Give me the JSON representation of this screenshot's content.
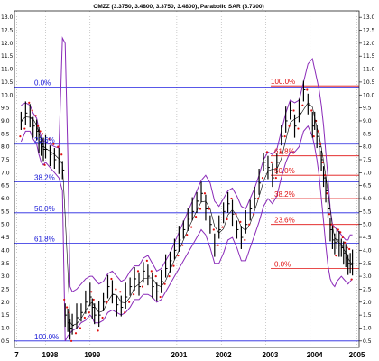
{
  "chart_data": {
    "type": "line",
    "title": "OMZZ (3.3750, 3.4800, 3.3750, 3.4800), Parabolic SAR (3.7300)",
    "xlabel": "",
    "ylabel": "",
    "ylim": [
      0.25,
      13.25
    ],
    "x_ticks": [
      "7",
      "1998",
      "1999",
      "2001",
      "2002",
      "2003",
      "2004",
      "2005"
    ],
    "y_ticks": [
      "0.5",
      "1.0",
      "1.5",
      "2.0",
      "2.5",
      "3.0",
      "3.5",
      "4.0",
      "4.5",
      "5.0",
      "5.5",
      "6.0",
      "6.5",
      "7.0",
      "7.5",
      "8.0",
      "8.5",
      "9.0",
      "9.5",
      "10.0",
      "10.5",
      "11.0",
      "11.5",
      "12.0",
      "12.5",
      "13.0"
    ],
    "fib_left": {
      "labels": [
        "0.0%",
        "23.6%",
        "38.2%",
        "50.0%",
        "61.8%",
        "100.0%"
      ],
      "values": [
        10.3,
        8.1,
        6.65,
        5.45,
        4.28,
        0.5
      ]
    },
    "fib_right": {
      "labels": [
        "100.0%",
        "61.8%",
        "50.0%",
        "38.2%",
        "23.6%",
        "0.0%"
      ],
      "values": [
        10.35,
        7.65,
        6.9,
        6.0,
        5.0,
        3.3
      ]
    },
    "series": [
      {
        "name": "",
        "x": [
          1997.45,
          1997.55,
          1997.65,
          1997.72,
          1997.8,
          1997.85,
          1997.9,
          1997.95,
          1998.0,
          1998.1,
          1998.2,
          1998.3,
          1998.38,
          1998.44,
          1998.5,
          1998.55,
          1998.6,
          1998.7,
          1998.8,
          1998.9,
          1999.0,
          1999.05,
          1999.1,
          1999.2,
          1999.3,
          1999.4,
          1999.5,
          1999.6,
          1999.7,
          1999.8,
          1999.9,
          2000.0,
          2000.1,
          2000.2,
          2000.3,
          2000.4,
          2000.5,
          2000.6,
          2000.7,
          2000.8,
          2000.9,
          2001.0,
          2001.1,
          2001.2,
          2001.3,
          2001.4,
          2001.5,
          2001.6,
          2001.7,
          2001.8,
          2001.9,
          2002.0,
          2002.1,
          2002.2,
          2002.3,
          2002.4,
          2002.5,
          2002.6,
          2002.7,
          2002.8,
          2002.9,
          2003.0,
          2003.1,
          2003.2,
          2003.3,
          2003.4,
          2003.5,
          2003.6,
          2003.7,
          2003.8,
          2003.9,
          2004.0,
          2004.05,
          2004.1,
          2004.15,
          2004.2,
          2004.25,
          2004.3,
          2004.35,
          2004.4,
          2004.45,
          2004.5,
          2004.55,
          2004.6,
          2004.65,
          2004.7,
          2004.75,
          2004.8,
          2004.85,
          2004.9
        ],
        "values": [
          9.0,
          9.3,
          9.1,
          8.8,
          8.6,
          8.2,
          8.0,
          7.9,
          7.9,
          7.7,
          7.5,
          7.4,
          7.1,
          1.5,
          1.2,
          1.0,
          1.1,
          1.4,
          1.6,
          2.0,
          2.2,
          1.8,
          1.5,
          1.5,
          2.0,
          2.6,
          2.3,
          1.9,
          1.8,
          2.2,
          2.6,
          2.9,
          2.6,
          3.2,
          3.0,
          2.6,
          2.4,
          2.8,
          3.3,
          3.6,
          4.0,
          4.4,
          4.8,
          5.2,
          5.5,
          5.9,
          6.2,
          5.6,
          5.0,
          4.2,
          4.8,
          5.5,
          5.8,
          5.4,
          4.8,
          4.5,
          5.0,
          5.6,
          6.0,
          6.6,
          7.4,
          7.2,
          6.8,
          7.4,
          8.4,
          9.0,
          9.4,
          8.8,
          9.3,
          10.2,
          9.6,
          8.8,
          9.0,
          8.4,
          8.0,
          7.5,
          6.8,
          6.3,
          5.6,
          4.8,
          4.4,
          4.3,
          4.4,
          4.2,
          4.1,
          3.9,
          3.7,
          3.5,
          3.45,
          3.48
        ]
      }
    ],
    "upper_band": [
      9.6,
      9.7,
      9.6,
      9.3,
      9.1,
      8.7,
      8.4,
      8.2,
      8.2,
      8.1,
      8.0,
      7.95,
      12.2,
      12.0,
      7.8,
      2.6,
      2.4,
      2.5,
      2.7,
      2.9,
      3.0,
      3.0,
      2.9,
      2.7,
      2.8,
      3.1,
      3.2,
      3.0,
      2.8,
      2.9,
      3.2,
      3.4,
      3.4,
      3.7,
      3.8,
      3.5,
      3.2,
      3.3,
      3.6,
      3.9,
      4.3,
      4.7,
      5.1,
      5.5,
      5.9,
      6.3,
      6.7,
      6.9,
      6.6,
      5.9,
      5.7,
      6.0,
      6.3,
      6.4,
      6.1,
      5.7,
      5.6,
      6.0,
      6.4,
      6.9,
      7.5,
      7.8,
      7.7,
      7.9,
      8.6,
      9.3,
      9.8,
      9.7,
      9.8,
      10.5,
      11.2,
      11.4,
      11.0,
      10.6,
      10.2,
      9.6,
      8.8,
      7.8,
      6.8,
      5.6,
      5.0,
      4.9,
      4.8,
      4.7,
      4.6,
      4.5,
      4.4,
      4.4,
      4.6,
      4.6
    ],
    "lower_band": [
      8.2,
      8.6,
      8.6,
      8.3,
      8.1,
      7.7,
      7.4,
      7.3,
      7.4,
      7.2,
      7.0,
      6.8,
      6.3,
      0.5,
      0.7,
      0.8,
      0.9,
      1.0,
      1.2,
      1.3,
      1.5,
      1.4,
      1.2,
      1.2,
      1.3,
      1.6,
      1.7,
      1.6,
      1.5,
      1.6,
      1.8,
      2.1,
      2.1,
      2.3,
      2.3,
      2.2,
      2.0,
      2.1,
      2.4,
      2.7,
      3.0,
      3.3,
      3.6,
      3.9,
      4.2,
      4.5,
      4.8,
      4.6,
      4.1,
      3.5,
      3.5,
      3.9,
      4.4,
      4.5,
      4.1,
      3.6,
      3.6,
      4.1,
      4.6,
      5.1,
      5.7,
      6.0,
      5.8,
      6.1,
      6.8,
      7.4,
      7.8,
      7.8,
      8.0,
      8.6,
      8.8,
      8.4,
      8.0,
      7.5,
      6.9,
      6.0,
      5.1,
      4.2,
      3.4,
      2.9,
      2.7,
      2.6,
      2.8,
      2.9,
      3.0,
      2.9,
      2.8,
      2.7,
      2.8,
      2.9
    ]
  }
}
